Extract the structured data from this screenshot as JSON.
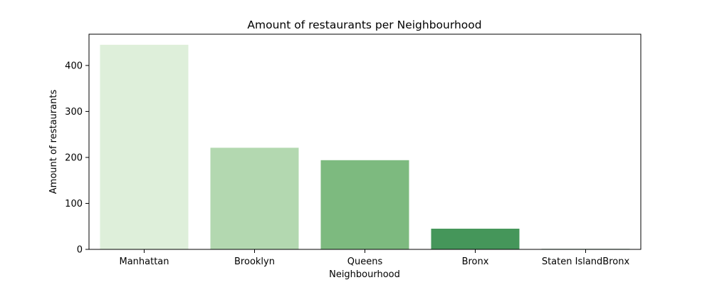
{
  "chart_data": {
    "type": "bar",
    "title": "Amount of restaurants per Neighbourhood",
    "xlabel": "Neighbourhood",
    "ylabel": "Amount of restaurants",
    "categories": [
      "Manhattan",
      "Brooklyn",
      "Queens",
      "Bronx",
      "Staten IslandBronx"
    ],
    "values": [
      445,
      221,
      194,
      45,
      1
    ],
    "colors": [
      "#deefda",
      "#b3d8b0",
      "#7dba7f",
      "#45965a",
      "#1b6b34"
    ],
    "ylim": [
      0,
      468
    ],
    "yticks": [
      0,
      100,
      200,
      300,
      400
    ],
    "grid": false,
    "legend": "none"
  }
}
